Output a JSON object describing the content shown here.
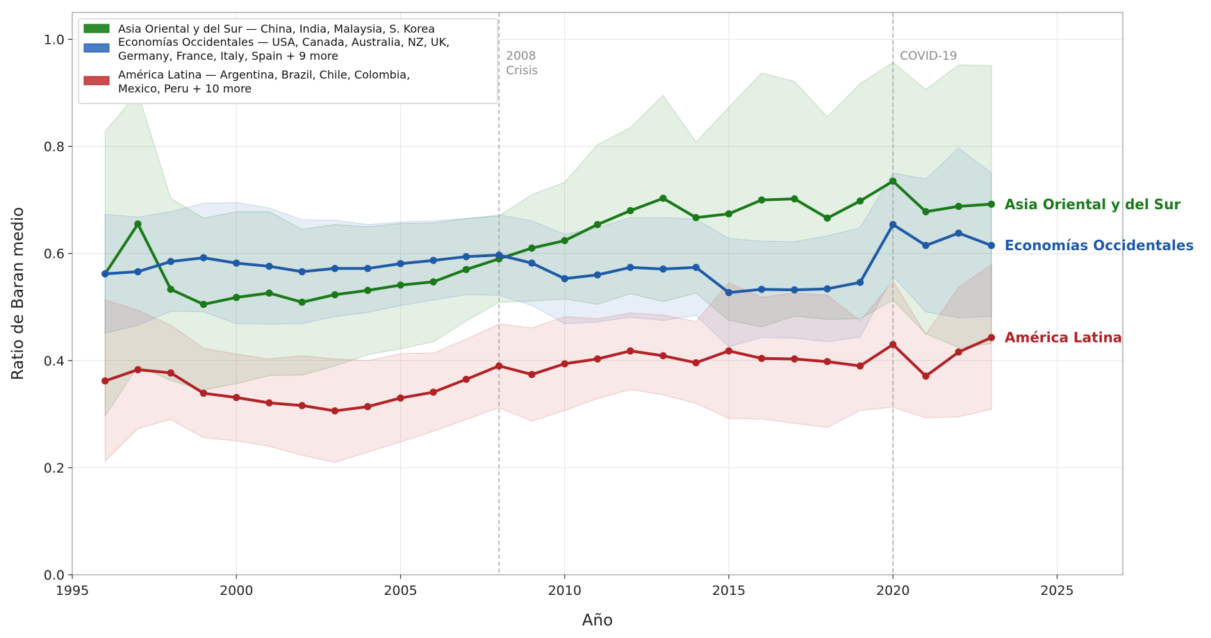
{
  "chart_data": {
    "type": "line",
    "title": "",
    "xlabel": "Año",
    "ylabel": "Ratio de Baran medio",
    "xlim": [
      1995,
      2027
    ],
    "ylim": [
      0.0,
      1.05
    ],
    "xticks": [
      1995,
      2000,
      2005,
      2010,
      2015,
      2020,
      2025
    ],
    "yticks": [
      "0.0",
      "0.2",
      "0.4",
      "0.6",
      "0.8",
      "1.0"
    ],
    "grid": true,
    "legend_position": "top-left",
    "x": [
      1996,
      1997,
      1998,
      1999,
      2000,
      2001,
      2002,
      2003,
      2004,
      2005,
      2006,
      2007,
      2008,
      2009,
      2010,
      2011,
      2012,
      2013,
      2014,
      2015,
      2016,
      2017,
      2018,
      2019,
      2020,
      2021,
      2022,
      2023
    ],
    "series": [
      {
        "name": "Asia Oriental y del Sur",
        "legend_label": [
          "Asia Oriental y del Sur  —  China, India, Malaysia, S. Korea"
        ],
        "end_label": "Asia Oriental y del Sur",
        "color": "#1a7a1a",
        "band_color": "#2e8b2e",
        "values": [
          0.562,
          0.655,
          0.533,
          0.505,
          0.518,
          0.526,
          0.509,
          0.523,
          0.531,
          0.541,
          0.547,
          0.57,
          0.59,
          0.61,
          0.624,
          0.654,
          0.68,
          0.703,
          0.667,
          0.674,
          0.7,
          0.702,
          0.666,
          0.698,
          0.735,
          0.678,
          0.688,
          0.692
        ],
        "upper": [
          0.828,
          0.9,
          0.703,
          0.666,
          0.678,
          0.678,
          0.645,
          0.654,
          0.65,
          0.656,
          0.657,
          0.665,
          0.67,
          0.71,
          0.733,
          0.803,
          0.835,
          0.895,
          0.808,
          0.873,
          0.937,
          0.921,
          0.855,
          0.917,
          0.957,
          0.906,
          0.952,
          0.951
        ],
        "lower": [
          0.297,
          0.39,
          0.363,
          0.345,
          0.357,
          0.372,
          0.373,
          0.39,
          0.411,
          0.422,
          0.435,
          0.474,
          0.509,
          0.511,
          0.515,
          0.505,
          0.525,
          0.51,
          0.526,
          0.475,
          0.463,
          0.483,
          0.477,
          0.478,
          0.513,
          0.45,
          0.424,
          0.432
        ]
      },
      {
        "name": "Economías Occidentales",
        "legend_label": [
          "Economías Occidentales  —  USA, Canada, Australia, NZ, UK,",
          "Germany, France, Italy, Spain + 9 more"
        ],
        "end_label": "Economías Occidentales",
        "color": "#1f5aa6",
        "band_color": "#4a7ec4",
        "values": [
          0.562,
          0.566,
          0.585,
          0.592,
          0.582,
          0.576,
          0.566,
          0.572,
          0.572,
          0.581,
          0.587,
          0.594,
          0.597,
          0.582,
          0.553,
          0.56,
          0.574,
          0.571,
          0.574,
          0.527,
          0.533,
          0.532,
          0.534,
          0.546,
          0.654,
          0.615,
          0.638,
          0.615
        ],
        "upper": [
          0.673,
          0.668,
          0.678,
          0.694,
          0.695,
          0.685,
          0.663,
          0.662,
          0.654,
          0.659,
          0.661,
          0.665,
          0.672,
          0.661,
          0.636,
          0.648,
          0.667,
          0.667,
          0.664,
          0.628,
          0.623,
          0.622,
          0.633,
          0.648,
          0.75,
          0.739,
          0.797,
          0.75
        ],
        "lower": [
          0.451,
          0.466,
          0.492,
          0.491,
          0.469,
          0.468,
          0.469,
          0.482,
          0.49,
          0.503,
          0.513,
          0.523,
          0.522,
          0.503,
          0.469,
          0.472,
          0.481,
          0.475,
          0.484,
          0.426,
          0.443,
          0.442,
          0.435,
          0.444,
          0.558,
          0.491,
          0.48,
          0.482
        ]
      },
      {
        "name": "América Latina",
        "legend_label": [
          "América Latina  —  Argentina, Brazil, Chile, Colombia,",
          "Mexico, Peru + 10 more"
        ],
        "end_label": "América Latina",
        "color": "#b02226",
        "band_color": "#c94b4e",
        "values": [
          0.362,
          0.383,
          0.377,
          0.339,
          0.331,
          0.321,
          0.316,
          0.306,
          0.314,
          0.33,
          0.341,
          0.365,
          0.39,
          0.374,
          0.394,
          0.403,
          0.418,
          0.409,
          0.396,
          0.418,
          0.404,
          0.403,
          0.398,
          0.39,
          0.43,
          0.371,
          0.416,
          0.443
        ],
        "upper": [
          0.513,
          0.494,
          0.466,
          0.423,
          0.412,
          0.403,
          0.409,
          0.403,
          0.4,
          0.413,
          0.414,
          0.44,
          0.468,
          0.461,
          0.482,
          0.478,
          0.489,
          0.485,
          0.473,
          0.545,
          0.518,
          0.526,
          0.522,
          0.474,
          0.548,
          0.449,
          0.537,
          0.579
        ],
        "lower": [
          0.212,
          0.273,
          0.29,
          0.256,
          0.25,
          0.24,
          0.223,
          0.21,
          0.229,
          0.248,
          0.268,
          0.29,
          0.312,
          0.287,
          0.307,
          0.329,
          0.346,
          0.336,
          0.32,
          0.292,
          0.291,
          0.283,
          0.275,
          0.307,
          0.313,
          0.293,
          0.295,
          0.309
        ]
      }
    ],
    "annotations": [
      {
        "x": 2008,
        "label": [
          "2008",
          "Crisis"
        ]
      },
      {
        "x": 2020,
        "label": [
          "COVID-19"
        ]
      }
    ]
  }
}
